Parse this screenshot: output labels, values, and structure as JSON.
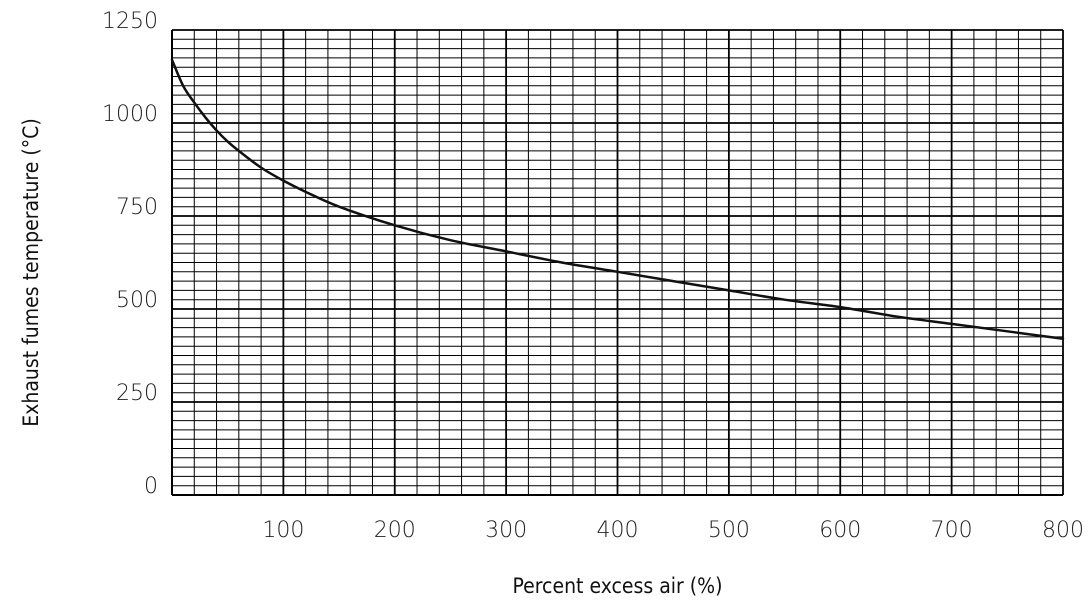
{
  "chart_data": {
    "type": "line",
    "title": "",
    "xlabel": "Percent excess air (%)",
    "ylabel": "Exhaust fumes temperature (°C)",
    "xlim": [
      0,
      800
    ],
    "ylim": [
      0,
      1250
    ],
    "x_ticks": [
      100,
      200,
      300,
      400,
      500,
      600,
      700,
      800
    ],
    "y_ticks": [
      0,
      250,
      500,
      750,
      1000,
      1250
    ],
    "grid": true,
    "grid_minor_x_step": 20,
    "grid_minor_y_step": 25,
    "series": [
      {
        "x": [
          0,
          10,
          20,
          30,
          40,
          50,
          60,
          80,
          100,
          120,
          150,
          200,
          250,
          300,
          350,
          400,
          450,
          500,
          550,
          600,
          650,
          700,
          750,
          800
        ],
        "y": [
          1170,
          1100,
          1055,
          1015,
          980,
          950,
          925,
          880,
          845,
          815,
          775,
          725,
          685,
          655,
          625,
          600,
          575,
          550,
          525,
          505,
          480,
          460,
          440,
          420
        ]
      }
    ]
  }
}
